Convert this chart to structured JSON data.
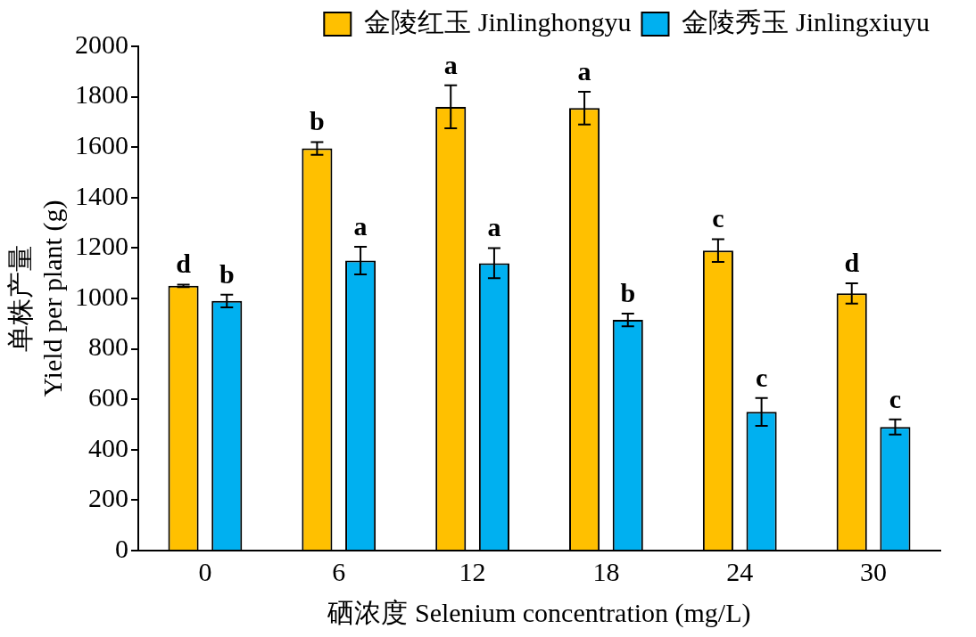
{
  "chart_data": {
    "type": "bar",
    "xlabel": "硒浓度 Selenium concentration (mg/L)",
    "ylabel": "单株产量\nYield per plant (g)",
    "categories": [
      "0",
      "6",
      "12",
      "18",
      "24",
      "30"
    ],
    "series": [
      {
        "name": "金陵红玉 Jinlinghongyu",
        "color": "#ffc000",
        "values": [
          1050,
          1595,
          1760,
          1755,
          1190,
          1020
        ],
        "errors": [
          5,
          25,
          85,
          65,
          45,
          40
        ]
      },
      {
        "name": "金陵秀玉 Jinlingxiuyu",
        "color": "#00b0f0",
        "values": [
          990,
          1150,
          1140,
          915,
          550,
          490
        ],
        "errors": [
          25,
          55,
          60,
          25,
          55,
          30
        ]
      }
    ],
    "ylim": [
      0,
      2000
    ],
    "yticks": [
      0,
      200,
      400,
      600,
      800,
      1000,
      1200,
      1400,
      1600,
      1800,
      2000
    ],
    "grid": false,
    "legend": "top",
    "annotations": [
      "d",
      "b",
      "a",
      "a",
      "c",
      "d",
      "b",
      "a",
      "a",
      "b",
      "c",
      "c"
    ]
  }
}
